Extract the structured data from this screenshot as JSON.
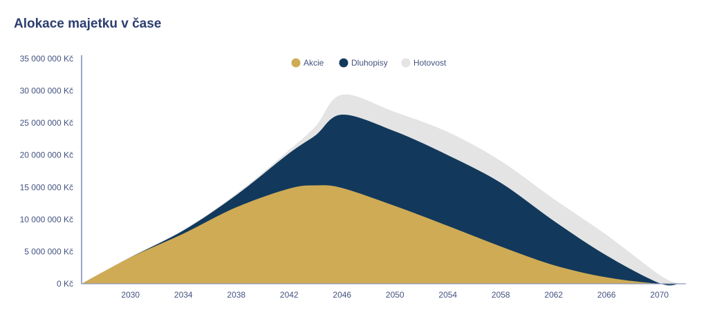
{
  "title": "Alokace majetku v čase",
  "chart_data": {
    "type": "area",
    "stacked": true,
    "title": "Alokace majetku v čase",
    "xlabel": "",
    "ylabel": "",
    "x": [
      2026.3,
      2030,
      2034,
      2038,
      2042,
      2044,
      2046,
      2050,
      2054,
      2058,
      2062,
      2066,
      2070,
      2071.5
    ],
    "xlim": [
      2026.3,
      2072
    ],
    "ylim": [
      0,
      35000000
    ],
    "x_ticks": [
      "2030",
      "2034",
      "2038",
      "2042",
      "2046",
      "2050",
      "2054",
      "2058",
      "2062",
      "2066",
      "2070"
    ],
    "y_ticks": [
      "0 Kč",
      "5 000 000 Kč",
      "10 000 000 Kč",
      "15 000 000 Kč",
      "20 000 000 Kč",
      "25 000 000 Kč",
      "30 000 000 Kč",
      "35 000 000 Kč"
    ],
    "legend_position": "top-center",
    "grid": false,
    "series": [
      {
        "name": "Akcie",
        "color": "#cfab55",
        "values": [
          0,
          4100000,
          7800000,
          11900000,
          14800000,
          15300000,
          14900000,
          12100000,
          9000000,
          5800000,
          2900000,
          1000000,
          0,
          0
        ]
      },
      {
        "name": "Dluhopisy",
        "color": "#12395c",
        "values": [
          0,
          0,
          500000,
          1900000,
          5500000,
          7800000,
          11400000,
          11600000,
          11000000,
          9900000,
          6900000,
          3400000,
          100000,
          0
        ]
      },
      {
        "name": "Hotovost",
        "color": "#e4e4e4",
        "values": [
          0,
          100000,
          100000,
          200000,
          500000,
          1400000,
          3100000,
          3000000,
          3600000,
          3400000,
          3400000,
          3200000,
          1300000,
          0
        ]
      }
    ]
  }
}
